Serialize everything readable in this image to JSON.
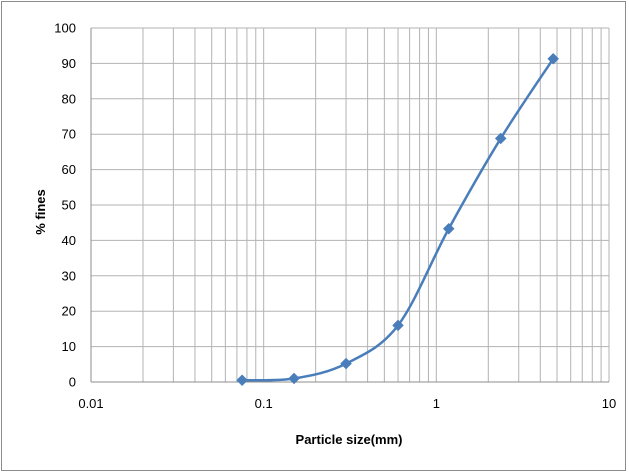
{
  "chart_data": {
    "type": "scatter",
    "title": "",
    "xlabel": "Particle size(mm)",
    "ylabel": "% fines",
    "x_scale": "log",
    "xlim": [
      0.01,
      10
    ],
    "ylim": [
      0,
      100
    ],
    "x_ticks": [
      "0.01",
      "0.1",
      "1",
      "10"
    ],
    "y_ticks": [
      "0",
      "10",
      "20",
      "30",
      "40",
      "50",
      "60",
      "70",
      "80",
      "90",
      "100"
    ],
    "grid": true,
    "legend": "none",
    "series": [
      {
        "color": "#4a7ebb",
        "marker": "diamond",
        "smooth_line": true,
        "x": [
          0.075,
          0.15,
          0.3,
          0.6,
          1.18,
          2.36,
          4.75
        ],
        "y": [
          0.5,
          1.0,
          5.2,
          16.0,
          43.3,
          68.8,
          91.3
        ]
      }
    ]
  }
}
